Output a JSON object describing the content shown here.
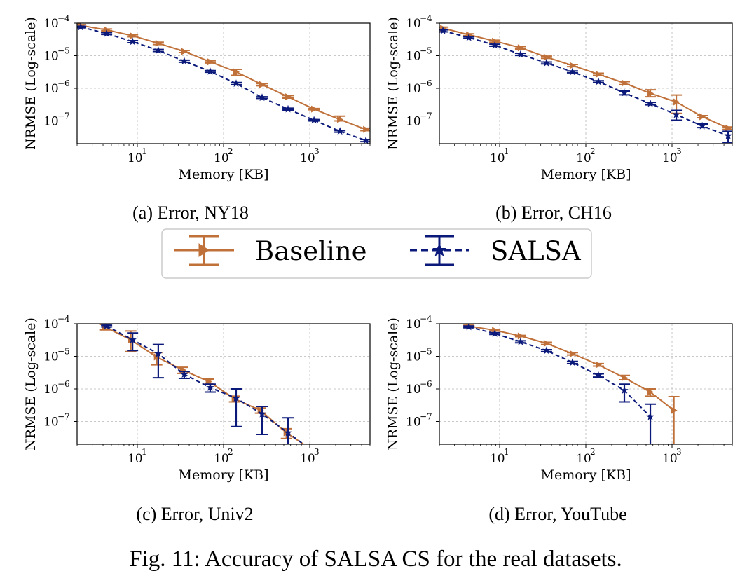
{
  "figure_caption": "Fig. 11: Accuracy of SALSA CS for the real datasets.",
  "colors": {
    "baseline": "#c0713a",
    "salsa": "#0b1a7a",
    "grid": "#b8b8b8"
  },
  "legend": {
    "placement": "center",
    "entries": [
      {
        "label": "Baseline",
        "marker": "right-triangle",
        "line": "solid",
        "color": "#c0713a"
      },
      {
        "label": "SALSA",
        "marker": "star",
        "line": "dashed",
        "color": "#0b1a7a"
      }
    ]
  },
  "chart_data": [
    {
      "type": "line",
      "caption": "(a) Error, NY18",
      "xlabel": "Memory [KB]",
      "ylabel": "NRMSE (Log-scale)",
      "xscale": "log",
      "yscale": "log",
      "xlim": [
        2,
        5000
      ],
      "ylim": [
        2e-08,
        0.0001
      ],
      "xticks": [
        {
          "base": "10",
          "exp": "1",
          "value": 10
        },
        {
          "base": "10",
          "exp": "2",
          "value": 100
        },
        {
          "base": "10",
          "exp": "3",
          "value": 1000
        }
      ],
      "yticks": [
        {
          "base": "10",
          "exp": "−4",
          "value": 0.0001
        },
        {
          "base": "10",
          "exp": "−5",
          "value": 1e-05
        },
        {
          "base": "10",
          "exp": "−6",
          "value": 1e-06
        },
        {
          "base": "10",
          "exp": "−7",
          "value": 1e-07
        }
      ],
      "grid": true,
      "series": [
        {
          "name": "Baseline",
          "x": [
            2.2,
            4.4,
            8.8,
            17.5,
            35,
            70,
            140,
            280,
            560,
            1120,
            2240,
            4480
          ],
          "y": [
            8.5e-05,
            6.2e-05,
            4.1e-05,
            2.4e-05,
            1.35e-05,
            6.5e-06,
            3.2e-06,
            1.3e-06,
            5.5e-07,
            2.3e-07,
            1.1e-07,
            5.5e-08
          ],
          "err_low": [
            8e-05,
            5.8e-05,
            3.8e-05,
            2.2e-05,
            1.25e-05,
            6e-06,
            2.5e-06,
            1.2e-06,
            5e-07,
            2.2e-07,
            1e-07,
            5e-08
          ],
          "err_high": [
            9e-05,
            6.6e-05,
            4.4e-05,
            2.6e-05,
            1.45e-05,
            7e-06,
            3.8e-06,
            1.4e-06,
            6e-07,
            2.4e-07,
            1.4e-07,
            6e-08
          ]
        },
        {
          "name": "SALSA",
          "x": [
            2.2,
            4.4,
            8.8,
            17.5,
            35,
            70,
            140,
            280,
            560,
            1120,
            2240,
            4480
          ],
          "y": [
            7.6e-05,
            4.8e-05,
            2.7e-05,
            1.45e-05,
            6.8e-06,
            3.3e-06,
            1.4e-06,
            5.2e-07,
            2.3e-07,
            1.05e-07,
            4.8e-08,
            2.5e-08
          ],
          "err_low": [
            7.2e-05,
            4.5e-05,
            2.5e-05,
            1.35e-05,
            6.3e-06,
            3.1e-06,
            1.3e-06,
            4.9e-07,
            2.15e-07,
            1e-07,
            4.5e-08,
            2.3e-08
          ],
          "err_high": [
            8e-05,
            5.1e-05,
            2.9e-05,
            1.55e-05,
            7.3e-06,
            3.5e-06,
            1.5e-06,
            5.5e-07,
            2.45e-07,
            1.1e-07,
            5.1e-08,
            2.7e-08
          ]
        }
      ]
    },
    {
      "type": "line",
      "caption": "(b) Error, CH16",
      "xlabel": "Memory [KB]",
      "ylabel": "NRMSE (Log-scale)",
      "xscale": "log",
      "yscale": "log",
      "xlim": [
        2,
        5000
      ],
      "ylim": [
        2e-08,
        0.0001
      ],
      "xticks": [
        {
          "base": "10",
          "exp": "1",
          "value": 10
        },
        {
          "base": "10",
          "exp": "2",
          "value": 100
        },
        {
          "base": "10",
          "exp": "3",
          "value": 1000
        }
      ],
      "yticks": [
        {
          "base": "10",
          "exp": "−4",
          "value": 0.0001
        },
        {
          "base": "10",
          "exp": "−5",
          "value": 1e-05
        },
        {
          "base": "10",
          "exp": "−6",
          "value": 1e-06
        },
        {
          "base": "10",
          "exp": "−7",
          "value": 1e-07
        }
      ],
      "grid": true,
      "series": [
        {
          "name": "Baseline",
          "x": [
            2.2,
            4.4,
            8.8,
            17.5,
            35,
            70,
            140,
            280,
            560,
            1120,
            2240,
            4480
          ],
          "y": [
            7e-05,
            4.4e-05,
            2.8e-05,
            1.75e-05,
            9e-06,
            5e-06,
            2.7e-06,
            1.45e-06,
            7e-07,
            3.8e-07,
            1.35e-07,
            6e-08
          ],
          "err_low": [
            6.5e-05,
            4.1e-05,
            2.6e-05,
            1.6e-05,
            8.3e-06,
            4.6e-06,
            2.5e-06,
            1.3e-06,
            5.5e-07,
            1.7e-07,
            1.25e-07,
            5.5e-08
          ],
          "err_high": [
            7.5e-05,
            4.7e-05,
            3e-05,
            1.9e-05,
            9.7e-06,
            5.4e-06,
            2.9e-06,
            1.6e-06,
            9e-07,
            6.2e-07,
            1.45e-07,
            6.5e-08
          ]
        },
        {
          "name": "SALSA",
          "x": [
            2.2,
            4.4,
            8.8,
            17.5,
            35,
            70,
            140,
            280,
            560,
            1120,
            2240,
            4480
          ],
          "y": [
            5.8e-05,
            3.6e-05,
            2.1e-05,
            1.1e-05,
            6e-06,
            3.2e-06,
            1.6e-06,
            7.2e-07,
            3.4e-07,
            1.55e-07,
            7e-08,
            3.5e-08
          ],
          "err_low": [
            5.4e-05,
            3.4e-05,
            1.95e-05,
            1.02e-05,
            5.6e-06,
            3e-06,
            1.5e-06,
            6.3e-07,
            3.1e-07,
            1.05e-07,
            6.2e-08,
            2.2e-08
          ],
          "err_high": [
            6.2e-05,
            3.8e-05,
            2.25e-05,
            1.18e-05,
            6.4e-06,
            3.4e-06,
            1.7e-06,
            8.2e-07,
            3.7e-07,
            2.1e-07,
            8e-08,
            4.8e-08
          ]
        }
      ]
    },
    {
      "type": "line",
      "caption": "(c) Error, Univ2",
      "xlabel": "Memory [KB]",
      "ylabel": "NRMSE (Log-scale)",
      "xscale": "log",
      "yscale": "log",
      "xlim": [
        2,
        5000
      ],
      "ylim": [
        2e-08,
        0.0001
      ],
      "xticks": [
        {
          "base": "10",
          "exp": "1",
          "value": 10
        },
        {
          "base": "10",
          "exp": "2",
          "value": 100
        },
        {
          "base": "10",
          "exp": "3",
          "value": 1000
        }
      ],
      "yticks": [
        {
          "base": "10",
          "exp": "−4",
          "value": 0.0001
        },
        {
          "base": "10",
          "exp": "−5",
          "value": 1e-05
        },
        {
          "base": "10",
          "exp": "−6",
          "value": 1e-06
        },
        {
          "base": "10",
          "exp": "−7",
          "value": 1e-07
        }
      ],
      "grid": true,
      "series": [
        {
          "name": "Baseline",
          "x": [
            4.2,
            8.4,
            16.8,
            33.6,
            67,
            134,
            268,
            536,
            1000
          ],
          "y": [
            8e-05,
            3.2e-05,
            9.5e-06,
            3.8e-06,
            1.7e-06,
            5e-07,
            2.2e-07,
            4.5e-08,
            1.5e-08
          ],
          "err_low": [
            6.5e-05,
            1.4e-05,
            5.5e-06,
            3e-06,
            1.4e-06,
            4e-07,
            1.8e-07,
            3e-08,
            1.5e-08
          ],
          "err_high": [
            9.5e-05,
            6e-05,
            1.3e-05,
            4.6e-06,
            2e-06,
            6e-07,
            2.6e-07,
            6e-08,
            1.5e-08
          ]
        },
        {
          "name": "SALSA",
          "x": [
            4.4,
            8.8,
            17.5,
            35,
            70,
            140,
            280,
            560,
            1100
          ],
          "y": [
            8.5e-05,
            3.2e-05,
            1.2e-05,
            2.8e-06,
            1.1e-06,
            5.2e-07,
            1.7e-07,
            4.5e-08,
            1.2e-08
          ],
          "err_low": [
            8e-05,
            1.5e-05,
            2.2e-06,
            2.1e-06,
            8e-07,
            7e-08,
            4e-08,
            1.5e-08,
            1.2e-08
          ],
          "err_high": [
            9e-05,
            5.2e-05,
            2.3e-05,
            3.4e-06,
            1.4e-06,
            1e-06,
            2.9e-07,
            1.3e-07,
            1.2e-08
          ]
        }
      ]
    },
    {
      "type": "line",
      "caption": "(d) Error, YouTube",
      "xlabel": "Memory [KB]",
      "ylabel": "NRMSE (Log-scale)",
      "xscale": "log",
      "yscale": "log",
      "xlim": [
        2,
        5000
      ],
      "ylim": [
        2e-08,
        0.0001
      ],
      "xticks": [
        {
          "base": "10",
          "exp": "1",
          "value": 10
        },
        {
          "base": "10",
          "exp": "2",
          "value": 100
        },
        {
          "base": "10",
          "exp": "3",
          "value": 1000
        }
      ],
      "yticks": [
        {
          "base": "10",
          "exp": "−4",
          "value": 0.0001
        },
        {
          "base": "10",
          "exp": "−5",
          "value": 1e-05
        },
        {
          "base": "10",
          "exp": "−6",
          "value": 1e-06
        },
        {
          "base": "10",
          "exp": "−7",
          "value": 1e-07
        }
      ],
      "grid": true,
      "series": [
        {
          "name": "Baseline",
          "x": [
            4.4,
            8.8,
            17.5,
            35,
            70,
            140,
            280,
            560,
            1050
          ],
          "y": [
            8.5e-05,
            6.3e-05,
            4.2e-05,
            2.5e-05,
            1.2e-05,
            5.5e-06,
            2.2e-06,
            8e-07,
            2.2e-07
          ],
          "err_low": [
            8e-05,
            6e-05,
            4e-05,
            2.3e-05,
            1.1e-05,
            5e-06,
            1.9e-06,
            6e-07,
            1e-08
          ],
          "err_high": [
            9e-05,
            6.6e-05,
            4.4e-05,
            2.7e-05,
            1.3e-05,
            6e-06,
            2.6e-06,
            1e-06,
            5.8e-07
          ]
        },
        {
          "name": "SALSA",
          "x": [
            4.4,
            8.8,
            17.5,
            35,
            70,
            140,
            280,
            560
          ],
          "y": [
            8e-05,
            5e-05,
            2.8e-05,
            1.5e-05,
            6.5e-06,
            2.6e-06,
            9e-07,
            1.4e-07
          ],
          "err_low": [
            7.5e-05,
            4.7e-05,
            2.6e-05,
            1.4e-05,
            6e-06,
            2.3e-06,
            4e-07,
            1e-08
          ],
          "err_high": [
            8.5e-05,
            5.3e-05,
            3e-05,
            1.6e-05,
            7e-06,
            2.9e-06,
            1.4e-06,
            3.4e-07
          ]
        }
      ]
    }
  ]
}
